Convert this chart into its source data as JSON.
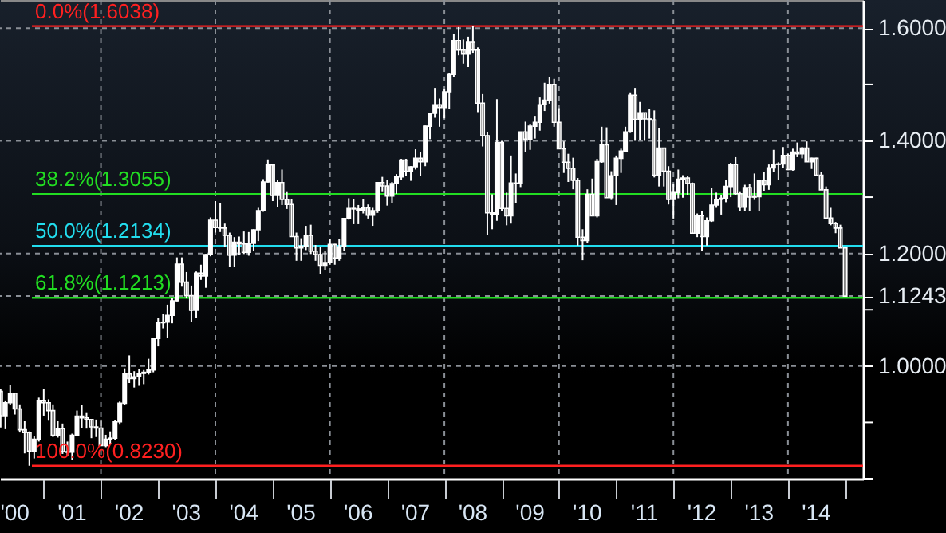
{
  "chart_data": {
    "type": "candlestick",
    "x": [
      "2000-04",
      "2000-05",
      "2000-06",
      "2000-07",
      "2000-08",
      "2000-09",
      "2000-10",
      "2000-11",
      "2000-12",
      "2001-01",
      "2001-02",
      "2001-03",
      "2001-04",
      "2001-05",
      "2001-06",
      "2001-07",
      "2001-08",
      "2001-09",
      "2001-10",
      "2001-11",
      "2001-12",
      "2002-01",
      "2002-02",
      "2002-03",
      "2002-04",
      "2002-05",
      "2002-06",
      "2002-07",
      "2002-08",
      "2002-09",
      "2002-10",
      "2002-11",
      "2002-12",
      "2003-01",
      "2003-02",
      "2003-03",
      "2003-04",
      "2003-05",
      "2003-06",
      "2003-07",
      "2003-08",
      "2003-09",
      "2003-10",
      "2003-11",
      "2003-12",
      "2004-01",
      "2004-02",
      "2004-03",
      "2004-04",
      "2004-05",
      "2004-06",
      "2004-07",
      "2004-08",
      "2004-09",
      "2004-10",
      "2004-11",
      "2004-12",
      "2005-01",
      "2005-02",
      "2005-03",
      "2005-04",
      "2005-05",
      "2005-06",
      "2005-07",
      "2005-08",
      "2005-09",
      "2005-10",
      "2005-11",
      "2005-12",
      "2006-01",
      "2006-02",
      "2006-03",
      "2006-04",
      "2006-05",
      "2006-06",
      "2006-07",
      "2006-08",
      "2006-09",
      "2006-10",
      "2006-11",
      "2006-12",
      "2007-01",
      "2007-02",
      "2007-03",
      "2007-04",
      "2007-05",
      "2007-06",
      "2007-07",
      "2007-08",
      "2007-09",
      "2007-10",
      "2007-11",
      "2007-12",
      "2008-01",
      "2008-02",
      "2008-03",
      "2008-04",
      "2008-05",
      "2008-06",
      "2008-07",
      "2008-08",
      "2008-09",
      "2008-10",
      "2008-11",
      "2008-12",
      "2009-01",
      "2009-02",
      "2009-03",
      "2009-04",
      "2009-05",
      "2009-06",
      "2009-07",
      "2009-08",
      "2009-09",
      "2009-10",
      "2009-11",
      "2009-12",
      "2010-01",
      "2010-02",
      "2010-03",
      "2010-04",
      "2010-05",
      "2010-06",
      "2010-07",
      "2010-08",
      "2010-09",
      "2010-10",
      "2010-11",
      "2010-12",
      "2011-01",
      "2011-02",
      "2011-03",
      "2011-04",
      "2011-05",
      "2011-06",
      "2011-07",
      "2011-08",
      "2011-09",
      "2011-10",
      "2011-11",
      "2011-12",
      "2012-01",
      "2012-02",
      "2012-03",
      "2012-04",
      "2012-05",
      "2012-06",
      "2012-07",
      "2012-08",
      "2012-09",
      "2012-10",
      "2012-11",
      "2012-12",
      "2013-01",
      "2013-02",
      "2013-03",
      "2013-04",
      "2013-05",
      "2013-06",
      "2013-07",
      "2013-08",
      "2013-09",
      "2013-10",
      "2013-11",
      "2013-12",
      "2014-01",
      "2014-02",
      "2014-03",
      "2014-04",
      "2014-05",
      "2014-06",
      "2014-07",
      "2014-08",
      "2014-09",
      "2014-10",
      "2014-11",
      "2014-12",
      "2015-01"
    ],
    "ohlc": [
      [
        0.955,
        0.96,
        0.891,
        0.912
      ],
      [
        0.912,
        0.939,
        0.888,
        0.935
      ],
      [
        0.935,
        0.966,
        0.931,
        0.952
      ],
      [
        0.952,
        0.952,
        0.914,
        0.924
      ],
      [
        0.924,
        0.932,
        0.882,
        0.887
      ],
      [
        0.887,
        0.902,
        0.845,
        0.882
      ],
      [
        0.882,
        0.884,
        0.823,
        0.849
      ],
      [
        0.849,
        0.875,
        0.836,
        0.87
      ],
      [
        0.87,
        0.944,
        0.866,
        0.939
      ],
      [
        0.939,
        0.96,
        0.912,
        0.935
      ],
      [
        0.935,
        0.941,
        0.903,
        0.921
      ],
      [
        0.921,
        0.932,
        0.874,
        0.877
      ],
      [
        0.877,
        0.902,
        0.873,
        0.889
      ],
      [
        0.889,
        0.898,
        0.844,
        0.848
      ],
      [
        0.848,
        0.866,
        0.84,
        0.847
      ],
      [
        0.847,
        0.88,
        0.834,
        0.877
      ],
      [
        0.877,
        0.921,
        0.876,
        0.911
      ],
      [
        0.911,
        0.931,
        0.89,
        0.908
      ],
      [
        0.908,
        0.918,
        0.889,
        0.905
      ],
      [
        0.905,
        0.906,
        0.872,
        0.892
      ],
      [
        0.892,
        0.905,
        0.874,
        0.89
      ],
      [
        0.89,
        0.905,
        0.858,
        0.859
      ],
      [
        0.859,
        0.878,
        0.856,
        0.87
      ],
      [
        0.87,
        0.884,
        0.861,
        0.872
      ],
      [
        0.872,
        0.904,
        0.869,
        0.901
      ],
      [
        0.901,
        0.937,
        0.896,
        0.934
      ],
      [
        0.934,
        0.996,
        0.931,
        0.986
      ],
      [
        0.986,
        1.019,
        0.97,
        0.978
      ],
      [
        0.978,
        0.991,
        0.962,
        0.981
      ],
      [
        0.981,
        0.995,
        0.965,
        0.987
      ],
      [
        0.987,
        0.993,
        0.968,
        0.989
      ],
      [
        0.989,
        1.013,
        0.985,
        0.993
      ],
      [
        0.993,
        1.049,
        0.989,
        1.049
      ],
      [
        1.049,
        1.086,
        1.035,
        1.077
      ],
      [
        1.077,
        1.093,
        1.067,
        1.078
      ],
      [
        1.078,
        1.109,
        1.05,
        1.09
      ],
      [
        1.09,
        1.121,
        1.076,
        1.116
      ],
      [
        1.116,
        1.193,
        1.115,
        1.181
      ],
      [
        1.181,
        1.193,
        1.141,
        1.149
      ],
      [
        1.149,
        1.167,
        1.12,
        1.125
      ],
      [
        1.125,
        1.143,
        1.079,
        1.099
      ],
      [
        1.099,
        1.168,
        1.086,
        1.165
      ],
      [
        1.165,
        1.18,
        1.153,
        1.16
      ],
      [
        1.16,
        1.199,
        1.139,
        1.198
      ],
      [
        1.198,
        1.264,
        1.195,
        1.259
      ],
      [
        1.259,
        1.293,
        1.237,
        1.246
      ],
      [
        1.246,
        1.29,
        1.238,
        1.245
      ],
      [
        1.245,
        1.253,
        1.211,
        1.232
      ],
      [
        1.232,
        1.237,
        1.176,
        1.197
      ],
      [
        1.197,
        1.229,
        1.176,
        1.22
      ],
      [
        1.22,
        1.23,
        1.198,
        1.217
      ],
      [
        1.217,
        1.239,
        1.199,
        1.202
      ],
      [
        1.202,
        1.238,
        1.196,
        1.218
      ],
      [
        1.218,
        1.243,
        1.204,
        1.242
      ],
      [
        1.242,
        1.281,
        1.222,
        1.276
      ],
      [
        1.276,
        1.332,
        1.274,
        1.327
      ],
      [
        1.327,
        1.367,
        1.326,
        1.357
      ],
      [
        1.357,
        1.358,
        1.293,
        1.303
      ],
      [
        1.303,
        1.33,
        1.283,
        1.326
      ],
      [
        1.326,
        1.349,
        1.286,
        1.296
      ],
      [
        1.296,
        1.309,
        1.279,
        1.287
      ],
      [
        1.287,
        1.297,
        1.23,
        1.23
      ],
      [
        1.23,
        1.237,
        1.187,
        1.21
      ],
      [
        1.21,
        1.227,
        1.187,
        1.213
      ],
      [
        1.213,
        1.249,
        1.206,
        1.232
      ],
      [
        1.232,
        1.251,
        1.199,
        1.204
      ],
      [
        1.204,
        1.215,
        1.187,
        1.198
      ],
      [
        1.198,
        1.212,
        1.164,
        1.179
      ],
      [
        1.179,
        1.204,
        1.17,
        1.184
      ],
      [
        1.184,
        1.225,
        1.18,
        1.216
      ],
      [
        1.216,
        1.217,
        1.18,
        1.192
      ],
      [
        1.192,
        1.225,
        1.187,
        1.212
      ],
      [
        1.212,
        1.263,
        1.205,
        1.262
      ],
      [
        1.262,
        1.298,
        1.26,
        1.28
      ],
      [
        1.28,
        1.297,
        1.252,
        1.279
      ],
      [
        1.279,
        1.286,
        1.252,
        1.277
      ],
      [
        1.277,
        1.297,
        1.271,
        1.281
      ],
      [
        1.281,
        1.287,
        1.262,
        1.268
      ],
      [
        1.268,
        1.281,
        1.249,
        1.276
      ],
      [
        1.276,
        1.327,
        1.272,
        1.326
      ],
      [
        1.326,
        1.336,
        1.309,
        1.32
      ],
      [
        1.32,
        1.33,
        1.285,
        1.302
      ],
      [
        1.302,
        1.327,
        1.289,
        1.324
      ],
      [
        1.324,
        1.341,
        1.306,
        1.336
      ],
      [
        1.336,
        1.368,
        1.331,
        1.366
      ],
      [
        1.366,
        1.368,
        1.337,
        1.346
      ],
      [
        1.346,
        1.355,
        1.329,
        1.354
      ],
      [
        1.354,
        1.385,
        1.349,
        1.369
      ],
      [
        1.369,
        1.38,
        1.338,
        1.363
      ],
      [
        1.363,
        1.427,
        1.355,
        1.426
      ],
      [
        1.426,
        1.45,
        1.403,
        1.449
      ],
      [
        1.449,
        1.494,
        1.441,
        1.464
      ],
      [
        1.464,
        1.475,
        1.425,
        1.459
      ],
      [
        1.459,
        1.492,
        1.44,
        1.487
      ],
      [
        1.487,
        1.521,
        1.456,
        1.518
      ],
      [
        1.518,
        1.59,
        1.514,
        1.578
      ],
      [
        1.578,
        1.602,
        1.552,
        1.561
      ],
      [
        1.561,
        1.58,
        1.537,
        1.554
      ],
      [
        1.554,
        1.585,
        1.531,
        1.575
      ],
      [
        1.575,
        1.6038,
        1.555,
        1.561
      ],
      [
        1.561,
        1.566,
        1.451,
        1.467
      ],
      [
        1.467,
        1.483,
        1.39,
        1.409
      ],
      [
        1.409,
        1.415,
        1.233,
        1.272
      ],
      [
        1.272,
        1.305,
        1.243,
        1.27
      ],
      [
        1.27,
        1.474,
        1.258,
        1.397
      ],
      [
        1.397,
        1.4,
        1.275,
        1.28
      ],
      [
        1.28,
        1.308,
        1.25,
        1.267
      ],
      [
        1.267,
        1.374,
        1.253,
        1.325
      ],
      [
        1.325,
        1.342,
        1.289,
        1.324
      ],
      [
        1.324,
        1.416,
        1.318,
        1.416
      ],
      [
        1.416,
        1.434,
        1.38,
        1.403
      ],
      [
        1.403,
        1.43,
        1.384,
        1.426
      ],
      [
        1.426,
        1.443,
        1.404,
        1.433
      ],
      [
        1.433,
        1.477,
        1.418,
        1.464
      ],
      [
        1.464,
        1.503,
        1.453,
        1.472
      ],
      [
        1.472,
        1.514,
        1.466,
        1.5
      ],
      [
        1.5,
        1.51,
        1.425,
        1.433
      ],
      [
        1.433,
        1.458,
        1.386,
        1.386
      ],
      [
        1.386,
        1.399,
        1.343,
        1.362
      ],
      [
        1.362,
        1.377,
        1.327,
        1.351
      ],
      [
        1.351,
        1.37,
        1.314,
        1.33
      ],
      [
        1.33,
        1.334,
        1.214,
        1.229
      ],
      [
        1.229,
        1.243,
        1.188,
        1.223
      ],
      [
        1.223,
        1.314,
        1.219,
        1.305
      ],
      [
        1.305,
        1.333,
        1.266,
        1.267
      ],
      [
        1.267,
        1.368,
        1.264,
        1.363
      ],
      [
        1.363,
        1.425,
        1.361,
        1.393
      ],
      [
        1.393,
        1.424,
        1.299,
        1.299
      ],
      [
        1.299,
        1.346,
        1.295,
        1.338
      ],
      [
        1.338,
        1.374,
        1.286,
        1.369
      ],
      [
        1.369,
        1.386,
        1.343,
        1.382
      ],
      [
        1.382,
        1.425,
        1.381,
        1.416
      ],
      [
        1.416,
        1.486,
        1.414,
        1.481
      ],
      [
        1.481,
        1.494,
        1.4,
        1.438
      ],
      [
        1.438,
        1.469,
        1.402,
        1.45
      ],
      [
        1.45,
        1.45,
        1.4,
        1.439
      ],
      [
        1.439,
        1.456,
        1.404,
        1.437
      ],
      [
        1.437,
        1.454,
        1.335,
        1.339
      ],
      [
        1.339,
        1.422,
        1.319,
        1.387
      ],
      [
        1.387,
        1.387,
        1.319,
        1.346
      ],
      [
        1.346,
        1.355,
        1.287,
        1.296
      ],
      [
        1.296,
        1.323,
        1.262,
        1.308
      ],
      [
        1.308,
        1.349,
        1.298,
        1.332
      ],
      [
        1.332,
        1.339,
        1.299,
        1.334
      ],
      [
        1.334,
        1.338,
        1.304,
        1.324
      ],
      [
        1.324,
        1.326,
        1.236,
        1.236
      ],
      [
        1.236,
        1.271,
        1.229,
        1.267
      ],
      [
        1.267,
        1.275,
        1.2042,
        1.23
      ],
      [
        1.23,
        1.264,
        1.214,
        1.258
      ],
      [
        1.258,
        1.317,
        1.256,
        1.286
      ],
      [
        1.286,
        1.308,
        1.281,
        1.296
      ],
      [
        1.296,
        1.303,
        1.269,
        1.298
      ],
      [
        1.298,
        1.331,
        1.291,
        1.319
      ],
      [
        1.319,
        1.361,
        1.3,
        1.358
      ],
      [
        1.358,
        1.371,
        1.303,
        1.306
      ],
      [
        1.306,
        1.309,
        1.275,
        1.282
      ],
      [
        1.282,
        1.322,
        1.275,
        1.317
      ],
      [
        1.317,
        1.324,
        1.275,
        1.3
      ],
      [
        1.3,
        1.342,
        1.295,
        1.301
      ],
      [
        1.301,
        1.33,
        1.275,
        1.33
      ],
      [
        1.33,
        1.345,
        1.31,
        1.322
      ],
      [
        1.322,
        1.358,
        1.313,
        1.352
      ],
      [
        1.352,
        1.384,
        1.344,
        1.358
      ],
      [
        1.358,
        1.362,
        1.331,
        1.359
      ],
      [
        1.359,
        1.389,
        1.352,
        1.374
      ],
      [
        1.374,
        1.377,
        1.348,
        1.349
      ],
      [
        1.349,
        1.386,
        1.347,
        1.38
      ],
      [
        1.38,
        1.397,
        1.371,
        1.377
      ],
      [
        1.377,
        1.389,
        1.369,
        1.387
      ],
      [
        1.387,
        1.399,
        1.363,
        1.363
      ],
      [
        1.363,
        1.37,
        1.35,
        1.369
      ],
      [
        1.369,
        1.37,
        1.339,
        1.339
      ],
      [
        1.339,
        1.344,
        1.313,
        1.313
      ],
      [
        1.313,
        1.319,
        1.263,
        1.263
      ],
      [
        1.263,
        1.281,
        1.25,
        1.253
      ],
      [
        1.253,
        1.256,
        1.236,
        1.245
      ],
      [
        1.245,
        1.251,
        1.21,
        1.21
      ],
      [
        1.21,
        1.212,
        1.1243,
        1.1243
      ]
    ],
    "color": "#ffffff",
    "xlim": [
      "2000-03-28",
      "2015-04-25"
    ],
    "xticks": [
      {
        "value": "2000-07",
        "label": "'00"
      },
      {
        "value": "2001",
        "label": null
      },
      {
        "value": "2001-07",
        "label": "'01"
      },
      {
        "value": "2002",
        "label": null
      },
      {
        "value": "2002-07",
        "label": "'02"
      },
      {
        "value": "2003",
        "label": null
      },
      {
        "value": "2003-07",
        "label": "'03"
      },
      {
        "value": "2004",
        "label": null
      },
      {
        "value": "2004-07",
        "label": "'04"
      },
      {
        "value": "2005",
        "label": null
      },
      {
        "value": "2005-07",
        "label": "'05"
      },
      {
        "value": "2006",
        "label": null
      },
      {
        "value": "2006-07",
        "label": "'06"
      },
      {
        "value": "2007",
        "label": null
      },
      {
        "value": "2007-07",
        "label": "'07"
      },
      {
        "value": "2008",
        "label": null
      },
      {
        "value": "2008-07",
        "label": "'08"
      },
      {
        "value": "2009",
        "label": null
      },
      {
        "value": "2009-07",
        "label": "'09"
      },
      {
        "value": "2010",
        "label": null
      },
      {
        "value": "2010-07",
        "label": "'10"
      },
      {
        "value": "2011",
        "label": null
      },
      {
        "value": "2011-07",
        "label": "'11"
      },
      {
        "value": "2012",
        "label": null
      },
      {
        "value": "2012-07",
        "label": "'12"
      },
      {
        "value": "2013",
        "label": null
      },
      {
        "value": "2013-07",
        "label": "'13"
      },
      {
        "value": "2014",
        "label": null
      },
      {
        "value": "2014-07",
        "label": "'14"
      },
      {
        "value": "2015",
        "label": null
      }
    ],
    "ylim": [
      0.8,
      1.65
    ],
    "yticks": [
      {
        "value": 0.8,
        "label": null
      },
      {
        "value": 0.9,
        "label": null
      },
      {
        "value": 1.0,
        "label": "1.0000"
      },
      {
        "value": 1.1,
        "label": null
      },
      {
        "value": 1.1243,
        "label": "1.1243"
      },
      {
        "value": 1.2,
        "label": "1.2000"
      },
      {
        "value": 1.3,
        "label": null
      },
      {
        "value": 1.4,
        "label": "1.4000"
      },
      {
        "value": 1.5,
        "label": null
      },
      {
        "value": 1.6,
        "label": "1.6000"
      }
    ],
    "grid": true,
    "ref_lines": [
      {
        "axis": "y",
        "value": 1.6038,
        "label": "0.0%(1.6038)",
        "color": "#ff2020"
      },
      {
        "axis": "y",
        "value": 1.3055,
        "label": "38.2%(1.3055)",
        "color": "#22dd22"
      },
      {
        "axis": "y",
        "value": 1.2134,
        "label": "50.0%(1.2134)",
        "color": "#22ddee"
      },
      {
        "axis": "y",
        "value": 1.1213,
        "label": "61.8%(1.1213)",
        "color": "#22dd22"
      },
      {
        "axis": "y",
        "value": 0.823,
        "label": "100.0%(0.8230)",
        "color": "#ff2020"
      }
    ]
  }
}
